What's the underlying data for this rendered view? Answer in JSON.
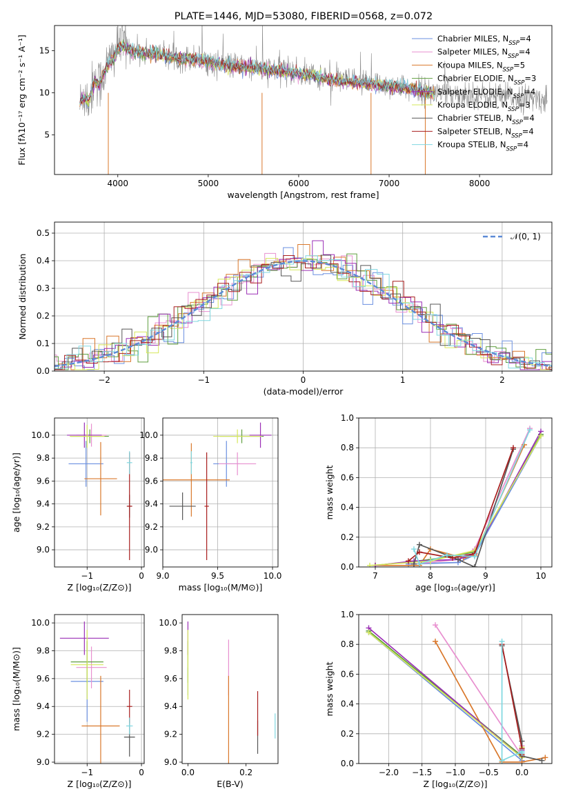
{
  "figure": {
    "title": "PLATE=1446, MJD=53080, FIBERID=0568, z=0.072"
  },
  "colors": {
    "Chabrier MILES": "#6a8fe0",
    "Salpeter MILES": "#e88fcf",
    "Kroupa MILES": "#d9772a",
    "Chabrier ELODIE": "#5f9e3f",
    "Salpeter ELODIE": "#9a2db5",
    "Kroupa ELODIE": "#d6e85a",
    "Chabrier STELIB": "#555555",
    "Salpeter STELIB": "#a81d1d",
    "Kroupa STELIB": "#7fd7e0",
    "data": "#8a8a8a",
    "normal": "#5b8ad6",
    "grid": "#b0b0b0"
  },
  "chart_data": [
    {
      "id": "spectrum",
      "type": "line",
      "title": "PLATE=1446, MJD=53080, FIBERID=0568, z=0.072",
      "xlabel": "wavelength [Angstrom, rest frame]",
      "ylabel": "Flux [fλ10⁻¹⁷ erg cm⁻² s⁻¹ A⁻¹]",
      "xlim": [
        3300,
        8800
      ],
      "ylim": [
        0.3,
        18
      ],
      "xticks": [
        4000,
        5000,
        6000,
        7000,
        8000
      ],
      "yticks": [
        5,
        10,
        15
      ],
      "grid": false,
      "legend_position": "upper right",
      "legend": [
        "Chabrier MILES, N_SSP=4",
        "Salpeter MILES, N_SSP=4",
        "Kroupa MILES, N_SSP=5",
        "Chabrier ELODIE, N_SSP=3",
        "Salpeter ELODIE, N_SSP=4",
        "Kroupa ELODIE, N_SSP=3",
        "Chabrier STELIB, N_SSP=4",
        "Salpeter STELIB, N_SSP=4",
        "Kroupa STELIB, N_SSP=4"
      ],
      "data_series": {
        "x": [
          3580,
          3620,
          3680,
          3750,
          3800,
          3850,
          3900,
          3950,
          4000,
          4050,
          4100,
          4200,
          4300,
          4400,
          4500,
          4700,
          4900,
          5100,
          5300,
          5500,
          5700,
          5900,
          6100,
          6300,
          6500,
          6700,
          6900,
          7100,
          7300,
          7500,
          7700,
          7900,
          8100,
          8300,
          8500,
          8700
        ],
        "y": [
          8.5,
          10.0,
          9.0,
          12.0,
          11.0,
          12.5,
          13.5,
          14.5,
          15.5,
          16.0,
          15.5,
          15.0,
          14.8,
          14.8,
          14.5,
          14.2,
          14.0,
          13.5,
          13.2,
          13.0,
          12.8,
          12.5,
          12.2,
          11.8,
          11.4,
          11.2,
          11.0,
          10.8,
          10.4,
          10.0,
          10.0,
          9.8,
          9.6,
          9.5,
          9.4,
          9.2
        ]
      },
      "model_series": {
        "x": [
          3580,
          3620,
          3680,
          3750,
          3800,
          3850,
          3900,
          3950,
          4000,
          4050,
          4100,
          4200,
          4300,
          4400,
          4500,
          4700,
          4900,
          5100,
          5300,
          5500,
          5700,
          5900,
          6100,
          6300,
          6500,
          6700,
          6900,
          7100,
          7300,
          7500
        ],
        "y": [
          8.5,
          9.5,
          9.0,
          11.5,
          11.0,
          12.5,
          13.5,
          14.0,
          15.2,
          15.6,
          15.2,
          14.8,
          14.7,
          14.6,
          14.4,
          14.1,
          13.9,
          13.4,
          13.1,
          12.9,
          12.7,
          12.4,
          12.1,
          11.7,
          11.3,
          11.1,
          10.9,
          10.7,
          10.3,
          9.9
        ]
      }
    },
    {
      "id": "residuals",
      "type": "step",
      "xlabel": "(data-model)/error",
      "ylabel": "Normed distribution",
      "xlim": [
        -2.5,
        2.5
      ],
      "ylim": [
        0,
        0.54
      ],
      "xticks": [
        -2,
        -1,
        0,
        1,
        2
      ],
      "yticks": [
        0.0,
        0.1,
        0.2,
        0.3,
        0.4,
        0.5
      ],
      "grid": true,
      "legend_position": "upper right",
      "legend": [
        "𝒩(0, 1)"
      ]
    },
    {
      "id": "z-age",
      "type": "scatter",
      "xlabel": "Z [log₁₀(Z/Z⊙)]",
      "ylabel": "age  [log₁₀(age/yr)]",
      "xlim": [
        -1.6,
        0.05
      ],
      "ylim": [
        8.85,
        10.15
      ],
      "xticks": [
        -1,
        0
      ],
      "yticks": [
        9.0,
        9.2,
        9.4,
        9.6,
        9.8,
        10.0
      ],
      "grid": true,
      "points": [
        {
          "x": -1.02,
          "y": 9.75,
          "ex": 0.32,
          "ey": 0.2,
          "c": "Chabrier MILES"
        },
        {
          "x": -0.92,
          "y": 10.0,
          "ex": 0.28,
          "ey": 0.1,
          "c": "Salpeter MILES"
        },
        {
          "x": -0.75,
          "y": 9.62,
          "ex": 0.3,
          "ey": 0.32,
          "c": "Kroupa MILES"
        },
        {
          "x": -0.95,
          "y": 9.99,
          "ex": 0.35,
          "ey": 0.06,
          "c": "Chabrier ELODIE"
        },
        {
          "x": -1.05,
          "y": 10.0,
          "ex": 0.32,
          "ey": 0.11,
          "c": "Salpeter ELODIE"
        },
        {
          "x": -1.0,
          "y": 9.99,
          "ex": 0.32,
          "ey": 0.1,
          "c": "Kroupa ELODIE"
        },
        {
          "x": -0.22,
          "y": 9.38,
          "ex": 0.04,
          "ey": 0.1,
          "c": "Chabrier STELIB"
        },
        {
          "x": -0.22,
          "y": 9.38,
          "ex": 0.05,
          "ey": 0.47,
          "c": "Salpeter STELIB"
        },
        {
          "x": -0.22,
          "y": 9.76,
          "ex": 0.05,
          "ey": 0.1,
          "c": "Kroupa STELIB"
        }
      ]
    },
    {
      "id": "mass-age",
      "type": "scatter",
      "xlabel": "mass [log₁₀(M/M⊙)]",
      "ylabel": "",
      "xlim": [
        9.0,
        10.05
      ],
      "ylim": [
        8.85,
        10.15
      ],
      "xticks": [
        9.0,
        9.5,
        10.0
      ],
      "yticks": [
        9.0,
        9.2,
        9.4,
        9.6,
        9.8,
        10.0
      ],
      "grid": true,
      "points": [
        {
          "x": 9.58,
          "y": 9.75,
          "ex": 0.12,
          "ey": 0.2,
          "c": "Chabrier MILES"
        },
        {
          "x": 9.68,
          "y": 9.75,
          "ex": 0.17,
          "ey": 0.1,
          "c": "Salpeter MILES"
        },
        {
          "x": 9.26,
          "y": 9.61,
          "ex": 0.35,
          "ey": 0.32,
          "c": "Kroupa MILES"
        },
        {
          "x": 9.72,
          "y": 9.99,
          "ex": 0.2,
          "ey": 0.06,
          "c": "Chabrier ELODIE"
        },
        {
          "x": 9.89,
          "y": 10.0,
          "ex": 0.1,
          "ey": 0.11,
          "c": "Salpeter ELODIE"
        },
        {
          "x": 9.68,
          "y": 9.99,
          "ex": 0.22,
          "ey": 0.06,
          "c": "Kroupa ELODIE"
        },
        {
          "x": 9.18,
          "y": 9.38,
          "ex": 0.12,
          "ey": 0.12,
          "c": "Chabrier STELIB"
        },
        {
          "x": 9.4,
          "y": 9.38,
          "ex": 0.02,
          "ey": 0.47,
          "c": "Salpeter STELIB"
        },
        {
          "x": 9.26,
          "y": 9.76,
          "ex": 0.01,
          "ey": 0.1,
          "c": "Kroupa STELIB"
        }
      ]
    },
    {
      "id": "age-weight",
      "type": "line",
      "xlabel": "age  [log₁₀(age/yr)]",
      "ylabel": "mass weight",
      "xlim": [
        6.7,
        10.2
      ],
      "ylim": [
        0,
        1.0
      ],
      "xticks": [
        7,
        8,
        9,
        10
      ],
      "yticks": [
        0.0,
        0.2,
        0.4,
        0.6,
        0.8,
        1.0
      ],
      "grid": true,
      "series": [
        {
          "c": "Chabrier MILES",
          "x": [
            7.6,
            8.5,
            8.8,
            10.0
          ],
          "y": [
            0.02,
            0.03,
            0.08,
            0.88
          ]
        },
        {
          "c": "Salpeter MILES",
          "x": [
            7.7,
            8.5,
            8.8,
            9.8
          ],
          "y": [
            0.02,
            0.05,
            0.12,
            0.93
          ]
        },
        {
          "c": "Kroupa MILES",
          "x": [
            7.0,
            7.8,
            8.0,
            8.6,
            8.8,
            9.7
          ],
          "y": [
            0.01,
            0.01,
            0.12,
            0.06,
            0.08,
            0.82
          ]
        },
        {
          "c": "Chabrier ELODIE",
          "x": [
            7.0,
            8.0,
            8.8,
            10.0
          ],
          "y": [
            0.01,
            0.05,
            0.1,
            0.89
          ]
        },
        {
          "c": "Salpeter ELODIE",
          "x": [
            7.0,
            7.7,
            8.5,
            8.8,
            10.0
          ],
          "y": [
            0.01,
            0.04,
            0.05,
            0.09,
            0.91
          ]
        },
        {
          "c": "Kroupa ELODIE",
          "x": [
            6.9,
            8.0,
            8.8,
            10.0
          ],
          "y": [
            0.01,
            0.04,
            0.11,
            0.88
          ]
        },
        {
          "c": "Chabrier STELIB",
          "x": [
            7.7,
            7.8,
            8.5,
            8.8,
            9.5
          ],
          "y": [
            0.02,
            0.15,
            0.05,
            0.0,
            0.79
          ]
        },
        {
          "c": "Salpeter STELIB",
          "x": [
            7.6,
            7.8,
            8.4,
            8.8,
            9.5
          ],
          "y": [
            0.04,
            0.1,
            0.06,
            0.09,
            0.8
          ]
        },
        {
          "c": "Kroupa STELIB",
          "x": [
            7.7,
            7.8,
            8.3,
            8.8,
            9.8
          ],
          "y": [
            0.12,
            0.02,
            0.08,
            0.07,
            0.92
          ]
        }
      ]
    },
    {
      "id": "z-mass",
      "type": "scatter",
      "xlabel": "Z [log₁₀(Z/Z⊙)]",
      "ylabel": "mass [log₁₀(M/M⊙)]",
      "xlim": [
        -1.6,
        0.05
      ],
      "ylim": [
        8.99,
        10.06
      ],
      "xticks": [
        -1,
        0
      ],
      "yticks": [
        9.0,
        9.2,
        9.4,
        9.6,
        9.8,
        10.0
      ],
      "grid": true,
      "points": [
        {
          "x": -1.0,
          "y": 9.58,
          "ex": 0.3,
          "ey": 0.29,
          "c": "Chabrier MILES"
        },
        {
          "x": -0.92,
          "y": 9.68,
          "ex": 0.28,
          "ey": 0.15,
          "c": "Salpeter MILES"
        },
        {
          "x": -0.75,
          "y": 9.26,
          "ex": 0.35,
          "ey": 0.36,
          "c": "Kroupa MILES"
        },
        {
          "x": -1.0,
          "y": 9.72,
          "ex": 0.3,
          "ey": 0.15,
          "c": "Chabrier ELODIE"
        },
        {
          "x": -1.05,
          "y": 9.89,
          "ex": 0.45,
          "ey": 0.12,
          "c": "Salpeter ELODIE"
        },
        {
          "x": -1.0,
          "y": 9.7,
          "ex": 0.3,
          "ey": 0.25,
          "c": "Kroupa ELODIE"
        },
        {
          "x": -0.22,
          "y": 9.18,
          "ex": 0.1,
          "ey": 0.14,
          "c": "Chabrier STELIB"
        },
        {
          "x": -0.22,
          "y": 9.4,
          "ex": 0.05,
          "ey": 0.12,
          "c": "Salpeter STELIB"
        },
        {
          "x": -0.22,
          "y": 9.26,
          "ex": 0.06,
          "ey": 0.06,
          "c": "Kroupa STELIB"
        }
      ]
    },
    {
      "id": "ebv-mass",
      "type": "scatter",
      "xlabel": "E(B-V)",
      "ylabel": "",
      "xlim": [
        -0.02,
        0.31
      ],
      "ylim": [
        8.99,
        10.06
      ],
      "xticks": [
        0.0,
        0.2
      ],
      "yticks": [
        9.0,
        9.2,
        9.4,
        9.6,
        9.8,
        10.0
      ],
      "grid": false,
      "points": [
        {
          "x": 0.0,
          "y": 9.58,
          "ex": 0,
          "ey": 0.1,
          "c": "Chabrier MILES"
        },
        {
          "x": 0.14,
          "y": 9.68,
          "ex": 0,
          "ey": 0.2,
          "c": "Salpeter MILES"
        },
        {
          "x": 0.14,
          "y": 9.26,
          "ex": 0,
          "ey": 0.36,
          "c": "Kroupa MILES"
        },
        {
          "x": 0.0,
          "y": 9.72,
          "ex": 0,
          "ey": 0.15,
          "c": "Chabrier ELODIE"
        },
        {
          "x": 0.0,
          "y": 9.89,
          "ex": 0,
          "ey": 0.12,
          "c": "Salpeter ELODIE"
        },
        {
          "x": 0.0,
          "y": 9.7,
          "ex": 0,
          "ey": 0.25,
          "c": "Kroupa ELODIE"
        },
        {
          "x": 0.24,
          "y": 9.18,
          "ex": 0,
          "ey": 0.12,
          "c": "Chabrier STELIB"
        },
        {
          "x": 0.24,
          "y": 9.35,
          "ex": 0,
          "ey": 0.16,
          "c": "Salpeter STELIB"
        },
        {
          "x": 0.3,
          "y": 9.26,
          "ex": 0,
          "ey": 0.09,
          "c": "Kroupa STELIB"
        }
      ]
    },
    {
      "id": "z-weight",
      "type": "line",
      "xlabel": "Z [log₁₀(Z/Z⊙)]",
      "ylabel": "mass weight",
      "xlim": [
        -2.45,
        0.45
      ],
      "ylim": [
        0,
        1.0
      ],
      "xticks": [
        -2.0,
        -1.5,
        -1.0,
        -0.5,
        0.0
      ],
      "yticks": [
        0.0,
        0.2,
        0.4,
        0.6,
        0.8,
        1.0
      ],
      "grid": true,
      "series": [
        {
          "c": "Chabrier MILES",
          "x": [
            -2.3,
            0.0,
            0.0
          ],
          "y": [
            0.88,
            0.02,
            0.05
          ]
        },
        {
          "c": "Salpeter MILES",
          "x": [
            -1.3,
            0.0,
            0.0
          ],
          "y": [
            0.93,
            0.05,
            0.12
          ]
        },
        {
          "c": "Kroupa MILES",
          "x": [
            -1.3,
            -0.3,
            0.0,
            0.35
          ],
          "y": [
            0.82,
            0.01,
            0.01,
            0.04
          ]
        },
        {
          "c": "Chabrier ELODIE",
          "x": [
            -2.3,
            0.0,
            0.0
          ],
          "y": [
            0.89,
            0.05,
            0.1
          ]
        },
        {
          "c": "Salpeter ELODIE",
          "x": [
            -2.3,
            0.0,
            0.0
          ],
          "y": [
            0.91,
            0.04,
            0.09
          ]
        },
        {
          "c": "Kroupa ELODIE",
          "x": [
            -2.3,
            0.0,
            0.0
          ],
          "y": [
            0.88,
            0.04,
            0.11
          ]
        },
        {
          "c": "Chabrier STELIB",
          "x": [
            -0.3,
            0.0,
            0.0,
            0.3
          ],
          "y": [
            0.79,
            0.15,
            0.05,
            0.02
          ]
        },
        {
          "c": "Salpeter STELIB",
          "x": [
            -0.3,
            0.0,
            0.0
          ],
          "y": [
            0.8,
            0.1,
            0.06
          ]
        },
        {
          "c": "Kroupa STELIB",
          "x": [
            -0.3,
            -0.3,
            0.0,
            0.0
          ],
          "y": [
            0.82,
            0.02,
            0.08,
            0.07
          ]
        }
      ]
    }
  ]
}
